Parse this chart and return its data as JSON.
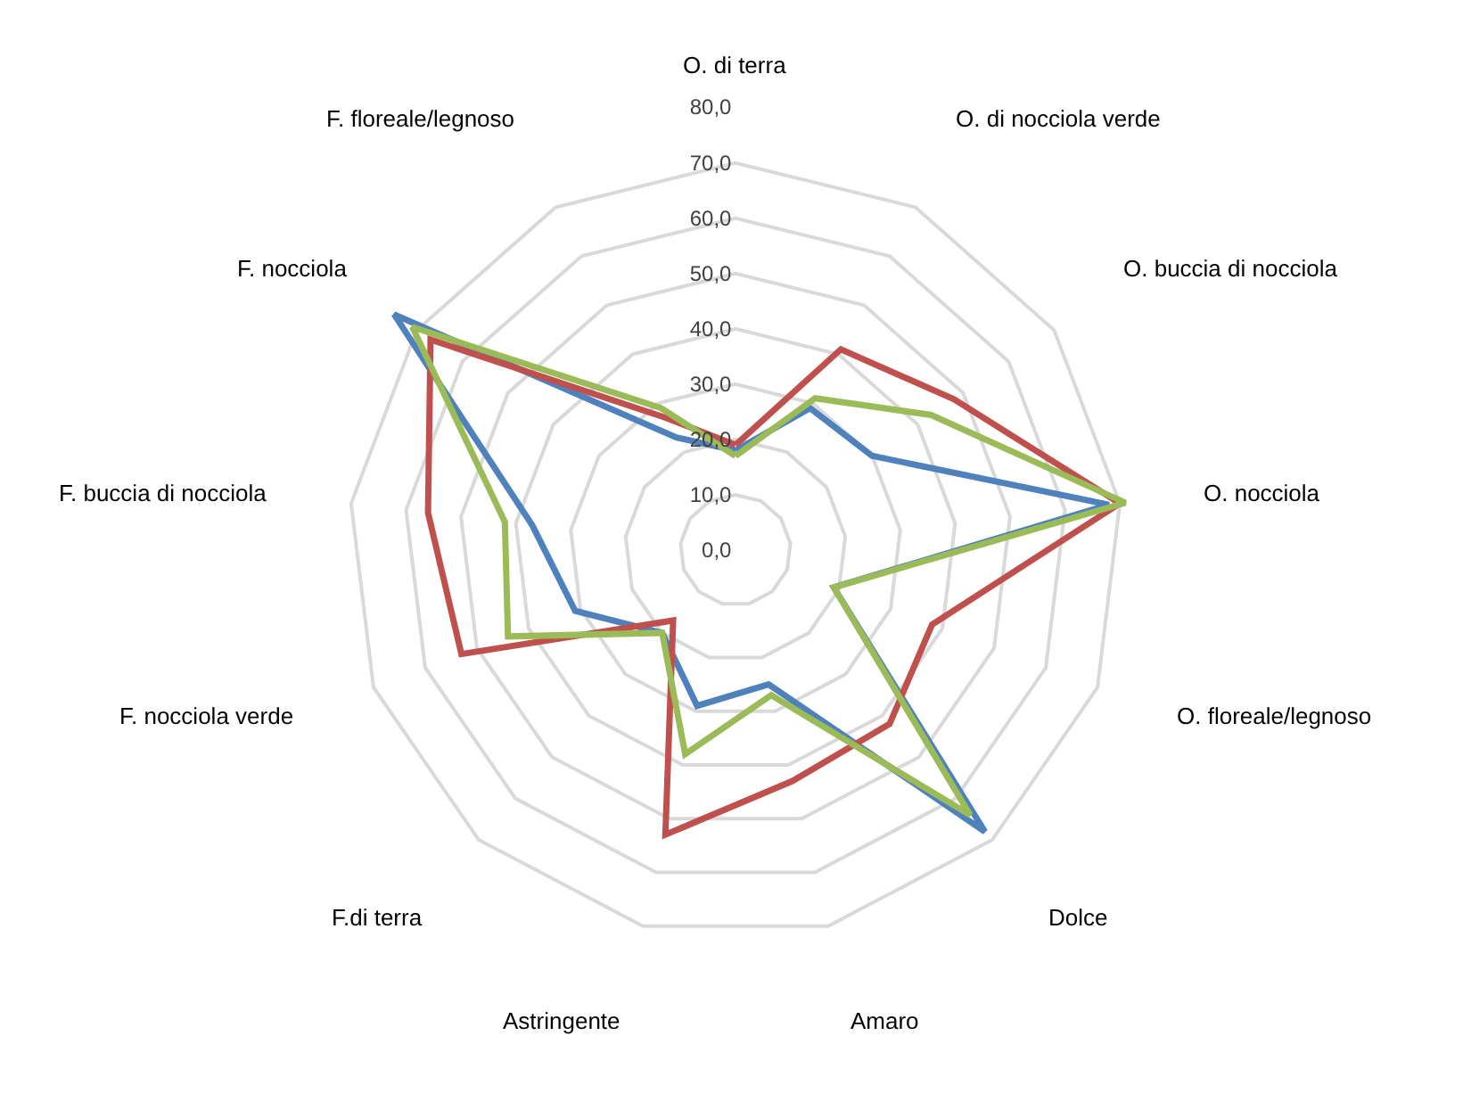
{
  "chart_data": {
    "type": "radar",
    "categories": [
      "O. di terra",
      "O. di nocciola verde",
      "O. buccia di nocciola",
      "O. nocciola",
      "O. floreale/legnoso",
      "Dolce",
      "Amaro",
      "Astringente",
      "F.di terra",
      "F. nocciola verde",
      "F. buccia di nocciola",
      "F. nocciola",
      "F. floreale/legnoso"
    ],
    "series": [
      {
        "color": "#4f81bd",
        "values": [
          18,
          29,
          30,
          68,
          19,
          68,
          25,
          29,
          20,
          31,
          37,
          75,
          23
        ]
      },
      {
        "color": "#c0504d",
        "values": [
          19,
          41,
          48,
          70,
          38,
          42,
          43,
          53,
          17,
          53,
          56,
          67,
          27
        ]
      },
      {
        "color": "#9bbb59",
        "values": [
          17,
          31,
          43,
          71,
          19,
          64,
          27,
          38,
          20,
          44,
          42,
          71,
          29
        ]
      }
    ],
    "ylim": [
      0,
      80
    ],
    "yticks": [
      {
        "value": 0,
        "label": "0,0"
      },
      {
        "value": 10,
        "label": "10,0"
      },
      {
        "value": 20,
        "label": "20,0"
      },
      {
        "value": 30,
        "label": "30,0"
      },
      {
        "value": 40,
        "label": "40,0"
      },
      {
        "value": 50,
        "label": "50,0"
      },
      {
        "value": 60,
        "label": "60,0"
      },
      {
        "value": 70,
        "label": "70,0"
      },
      {
        "value": 80,
        "label": "80,0"
      }
    ],
    "grid": true,
    "legend": false,
    "marker": "none",
    "line_style": "solid"
  }
}
